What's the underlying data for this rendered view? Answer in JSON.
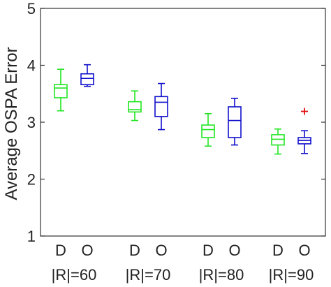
{
  "chart_data": {
    "type": "boxplot",
    "ylabel": "Average OSPA Error",
    "ylim": [
      1,
      5
    ],
    "yticks": [
      "1",
      "2",
      "3",
      "4",
      "5"
    ],
    "grid": false,
    "series_colors": {
      "D": "#22e622",
      "O": "#1010cc"
    },
    "outlier_color": "#e01010",
    "groups": [
      {
        "label": "|R|=60",
        "boxes": [
          {
            "name": "D",
            "whisker_low": 3.2,
            "q1": 3.43,
            "median": 3.6,
            "q3": 3.66,
            "whisker_high": 3.93,
            "outliers": []
          },
          {
            "name": "O",
            "whisker_low": 3.63,
            "q1": 3.66,
            "median": 3.77,
            "q3": 3.85,
            "whisker_high": 4.01,
            "outliers": []
          }
        ]
      },
      {
        "label": "|R|=70",
        "boxes": [
          {
            "name": "D",
            "whisker_low": 3.03,
            "q1": 3.18,
            "median": 3.22,
            "q3": 3.36,
            "whisker_high": 3.55,
            "outliers": []
          },
          {
            "name": "O",
            "whisker_low": 2.87,
            "q1": 3.1,
            "median": 3.35,
            "q3": 3.45,
            "whisker_high": 3.68,
            "outliers": []
          }
        ]
      },
      {
        "label": "|R|=80",
        "boxes": [
          {
            "name": "D",
            "whisker_low": 2.58,
            "q1": 2.73,
            "median": 2.87,
            "q3": 2.95,
            "whisker_high": 3.15,
            "outliers": []
          },
          {
            "name": "O",
            "whisker_low": 2.6,
            "q1": 2.73,
            "median": 3.03,
            "q3": 3.27,
            "whisker_high": 3.42,
            "outliers": []
          }
        ]
      },
      {
        "label": "|R|=90",
        "boxes": [
          {
            "name": "D",
            "whisker_low": 2.44,
            "q1": 2.6,
            "median": 2.7,
            "q3": 2.78,
            "whisker_high": 2.88,
            "outliers": []
          },
          {
            "name": "O",
            "whisker_low": 2.45,
            "q1": 2.62,
            "median": 2.68,
            "q3": 2.73,
            "whisker_high": 2.85,
            "outliers": [
              3.19
            ]
          }
        ]
      }
    ]
  }
}
